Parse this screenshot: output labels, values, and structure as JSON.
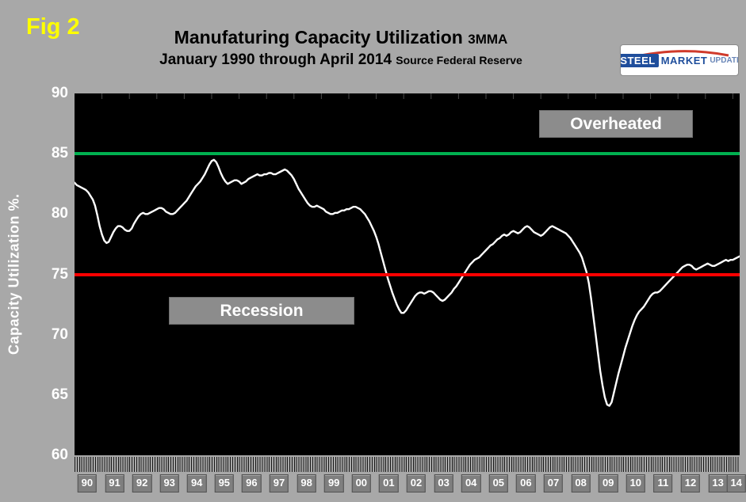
{
  "figure": {
    "label": "Fig 2"
  },
  "header": {
    "title": "Manufaturing Capacity Utilization",
    "title_suffix": "3MMA",
    "subtitle": "January 1990 through April 2014",
    "subtitle_suffix": "Source Federal Reserve"
  },
  "logo": {
    "steel": "STEEL",
    "market": "MARKET",
    "update": "UPDATE"
  },
  "annotations": {
    "overheated": "Overheated",
    "recession": "Recession"
  },
  "chart_data": {
    "type": "line",
    "title": "Manufaturing Capacity Utilization 3MMA",
    "ylabel": "Capacity Utilization %.",
    "ylim": [
      60,
      90
    ],
    "yticks": [
      90,
      85,
      80,
      75,
      70,
      65,
      60
    ],
    "x_start": "1990-01",
    "frequency": "monthly",
    "x_tick_labels": [
      "90",
      "91",
      "92",
      "93",
      "94",
      "95",
      "96",
      "97",
      "98",
      "99",
      "00",
      "01",
      "02",
      "03",
      "04",
      "05",
      "06",
      "07",
      "08",
      "09",
      "10",
      "11",
      "12",
      "13",
      "14"
    ],
    "grid": "off",
    "plot_background": "#000000",
    "background": "#A8A8A8",
    "reference_lines": [
      {
        "value": 85,
        "color": "#00B050",
        "label": "Overheated"
      },
      {
        "value": 75,
        "color": "#FF0000",
        "label": "Recession"
      }
    ],
    "series": [
      {
        "name": "Manufacturing Capacity Utilization 3MMA",
        "color": "#FFFFFF",
        "values": [
          82.6,
          82.4,
          82.3,
          82.2,
          82.1,
          82.0,
          81.8,
          81.5,
          81.2,
          80.7,
          79.9,
          79.0,
          78.3,
          77.8,
          77.6,
          77.7,
          78.1,
          78.5,
          78.8,
          79.0,
          79.0,
          78.9,
          78.7,
          78.6,
          78.6,
          78.8,
          79.2,
          79.5,
          79.8,
          80.0,
          80.1,
          80.0,
          80.0,
          80.1,
          80.2,
          80.3,
          80.4,
          80.5,
          80.5,
          80.4,
          80.2,
          80.1,
          80.0,
          80.0,
          80.1,
          80.3,
          80.5,
          80.7,
          80.9,
          81.1,
          81.4,
          81.7,
          82.0,
          82.3,
          82.5,
          82.7,
          83.0,
          83.3,
          83.7,
          84.1,
          84.4,
          84.5,
          84.3,
          83.9,
          83.4,
          83.0,
          82.7,
          82.5,
          82.6,
          82.7,
          82.8,
          82.8,
          82.7,
          82.5,
          82.6,
          82.7,
          82.9,
          83.0,
          83.1,
          83.2,
          83.3,
          83.2,
          83.2,
          83.3,
          83.3,
          83.4,
          83.4,
          83.3,
          83.3,
          83.4,
          83.5,
          83.6,
          83.7,
          83.6,
          83.4,
          83.2,
          82.9,
          82.5,
          82.1,
          81.8,
          81.5,
          81.2,
          80.9,
          80.7,
          80.6,
          80.6,
          80.7,
          80.6,
          80.5,
          80.4,
          80.2,
          80.1,
          80.0,
          80.0,
          80.1,
          80.1,
          80.2,
          80.3,
          80.3,
          80.4,
          80.4,
          80.5,
          80.6,
          80.6,
          80.5,
          80.4,
          80.2,
          80.0,
          79.7,
          79.4,
          79.0,
          78.6,
          78.1,
          77.5,
          76.8,
          76.1,
          75.4,
          74.7,
          74.1,
          73.5,
          73.0,
          72.5,
          72.1,
          71.8,
          71.8,
          72.0,
          72.3,
          72.6,
          72.9,
          73.2,
          73.4,
          73.5,
          73.5,
          73.4,
          73.5,
          73.6,
          73.6,
          73.5,
          73.3,
          73.1,
          72.9,
          72.8,
          72.9,
          73.1,
          73.3,
          73.5,
          73.8,
          74.0,
          74.3,
          74.6,
          74.9,
          75.2,
          75.5,
          75.8,
          76.0,
          76.2,
          76.3,
          76.4,
          76.6,
          76.8,
          77.0,
          77.2,
          77.4,
          77.5,
          77.7,
          77.9,
          78.0,
          78.2,
          78.3,
          78.2,
          78.3,
          78.5,
          78.6,
          78.5,
          78.4,
          78.5,
          78.7,
          78.9,
          79.0,
          78.9,
          78.7,
          78.5,
          78.4,
          78.3,
          78.2,
          78.3,
          78.5,
          78.7,
          78.9,
          79.0,
          78.9,
          78.8,
          78.7,
          78.6,
          78.5,
          78.4,
          78.2,
          78.0,
          77.7,
          77.4,
          77.1,
          76.8,
          76.4,
          75.8,
          75.2,
          74.3,
          73.0,
          71.5,
          70.0,
          68.5,
          67.0,
          65.8,
          64.8,
          64.2,
          64.1,
          64.4,
          65.2,
          66.0,
          66.8,
          67.5,
          68.2,
          68.9,
          69.5,
          70.1,
          70.7,
          71.2,
          71.6,
          71.9,
          72.1,
          72.3,
          72.6,
          72.9,
          73.2,
          73.4,
          73.5,
          73.5,
          73.6,
          73.8,
          74.0,
          74.2,
          74.4,
          74.6,
          74.8,
          75.0,
          75.2,
          75.4,
          75.6,
          75.7,
          75.8,
          75.8,
          75.7,
          75.5,
          75.4,
          75.5,
          75.6,
          75.7,
          75.8,
          75.9,
          75.8,
          75.7,
          75.7,
          75.8,
          75.9,
          76.0,
          76.1,
          76.2,
          76.1,
          76.2,
          76.2,
          76.3,
          76.4,
          76.5
        ]
      }
    ]
  }
}
